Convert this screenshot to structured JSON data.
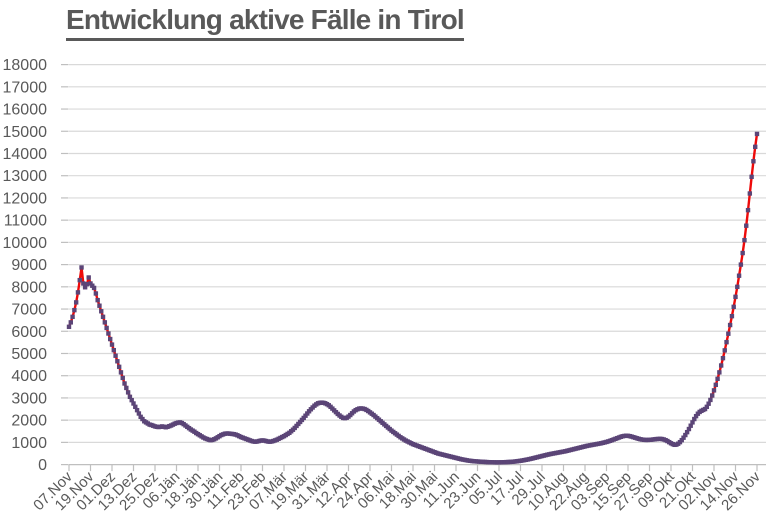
{
  "chart_data": {
    "type": "line",
    "title": "Entwicklung aktive Fälle in Tirol",
    "xlabel": "",
    "ylabel": "",
    "ylim": [
      0,
      18000
    ],
    "ytick_step": 1000,
    "grid": "horizontal",
    "legend": "none",
    "x_tick_interval_days": 12,
    "x_tick_labels": [
      "07.Nov",
      "19.Nov",
      "01.Dez",
      "13.Dez",
      "25.Dez",
      "06.Jän",
      "18.Jän",
      "30.Jän",
      "11.Feb",
      "23.Feb",
      "07.Mär",
      "19.Mär",
      "31.Mär",
      "12.Apr",
      "24.Apr",
      "06.Mai",
      "18.Mai",
      "30.Mai",
      "11.Jun",
      "23.Jun",
      "05.Jul",
      "17.Jul",
      "29.Jul",
      "10.Aug",
      "22.Aug",
      "03.Sep",
      "15.Sep",
      "27.Sep",
      "09.Okt",
      "21.Okt",
      "02.Nov",
      "14.Nov",
      "26.Nov"
    ],
    "series": [
      {
        "line_color": "#ee0a0a",
        "marker_color": "#5b4577",
        "marker_shape": "square",
        "values": [
          6200,
          6400,
          6650,
          6950,
          7300,
          7750,
          8300,
          8870,
          8150,
          7980,
          8120,
          8420,
          8150,
          8050,
          7950,
          7700,
          7400,
          7150,
          6900,
          6650,
          6400,
          6150,
          5900,
          5650,
          5400,
          5150,
          4900,
          4650,
          4400,
          4150,
          3900,
          3650,
          3450,
          3250,
          3050,
          2900,
          2750,
          2600,
          2450,
          2300,
          2150,
          2050,
          1950,
          1900,
          1850,
          1800,
          1780,
          1750,
          1720,
          1700,
          1690,
          1700,
          1720,
          1700,
          1680,
          1700,
          1730,
          1760,
          1800,
          1840,
          1870,
          1890,
          1900,
          1870,
          1820,
          1760,
          1700,
          1640,
          1580,
          1530,
          1480,
          1420,
          1370,
          1320,
          1270,
          1220,
          1180,
          1150,
          1120,
          1100,
          1110,
          1140,
          1180,
          1230,
          1280,
          1330,
          1360,
          1390,
          1400,
          1400,
          1390,
          1380,
          1370,
          1350,
          1320,
          1280,
          1240,
          1210,
          1180,
          1150,
          1120,
          1090,
          1060,
          1040,
          1030,
          1040,
          1060,
          1080,
          1090,
          1080,
          1060,
          1040,
          1030,
          1040,
          1060,
          1090,
          1120,
          1160,
          1200,
          1240,
          1280,
          1330,
          1380,
          1430,
          1500,
          1570,
          1650,
          1740,
          1830,
          1920,
          2010,
          2100,
          2200,
          2300,
          2400,
          2490,
          2570,
          2650,
          2710,
          2760,
          2780,
          2790,
          2780,
          2760,
          2720,
          2670,
          2600,
          2520,
          2440,
          2360,
          2280,
          2210,
          2150,
          2100,
          2090,
          2110,
          2160,
          2230,
          2310,
          2390,
          2450,
          2490,
          2520,
          2530,
          2520,
          2500,
          2460,
          2410,
          2350,
          2290,
          2230,
          2160,
          2090,
          2020,
          1950,
          1880,
          1810,
          1740,
          1670,
          1600,
          1530,
          1470,
          1410,
          1350,
          1290,
          1230,
          1180,
          1130,
          1080,
          1040,
          1000,
          960,
          920,
          890,
          860,
          830,
          800,
          770,
          740,
          710,
          680,
          650,
          620,
          590,
          560,
          530,
          500,
          480,
          460,
          440,
          420,
          400,
          380,
          360,
          340,
          320,
          300,
          280,
          260,
          240,
          225,
          210,
          195,
          180,
          170,
          160,
          150,
          145,
          140,
          135,
          130,
          125,
          120,
          115,
          110,
          108,
          105,
          103,
          100,
          100,
          100,
          102,
          105,
          108,
          112,
          116,
          120,
          125,
          132,
          140,
          150,
          160,
          172,
          185,
          200,
          215,
          230,
          248,
          265,
          285,
          305,
          325,
          345,
          365,
          385,
          405,
          425,
          445,
          462,
          480,
          495,
          510,
          525,
          540,
          555,
          570,
          585,
          600,
          620,
          640,
          660,
          680,
          700,
          720,
          740,
          760,
          780,
          800,
          820,
          840,
          855,
          870,
          885,
          900,
          915,
          930,
          945,
          960,
          980,
          1000,
          1020,
          1045,
          1070,
          1100,
          1130,
          1160,
          1190,
          1220,
          1250,
          1275,
          1290,
          1300,
          1295,
          1280,
          1260,
          1235,
          1210,
          1185,
          1160,
          1140,
          1125,
          1115,
          1110,
          1110,
          1115,
          1120,
          1130,
          1140,
          1150,
          1155,
          1160,
          1150,
          1130,
          1100,
          1060,
          1010,
          960,
          920,
          890,
          900,
          940,
          1010,
          1100,
          1210,
          1330,
          1460,
          1600,
          1750,
          1900,
          2050,
          2180,
          2290,
          2370,
          2420,
          2460,
          2500,
          2600,
          2740,
          2910,
          3110,
          3340,
          3590,
          3860,
          4150,
          4460,
          4790,
          5140,
          5510,
          5890,
          6280,
          6680,
          7100,
          7550,
          8000,
          8500,
          9000,
          9520,
          10100,
          10750,
          11450,
          12200,
          12950,
          13650,
          14300,
          14880
        ]
      }
    ],
    "style": {
      "title_color": "#595959",
      "tick_label_color": "#595959",
      "gridline_color": "#d9d9d9",
      "axis_line_color": "#bfbfbf",
      "background": "#ffffff"
    }
  }
}
